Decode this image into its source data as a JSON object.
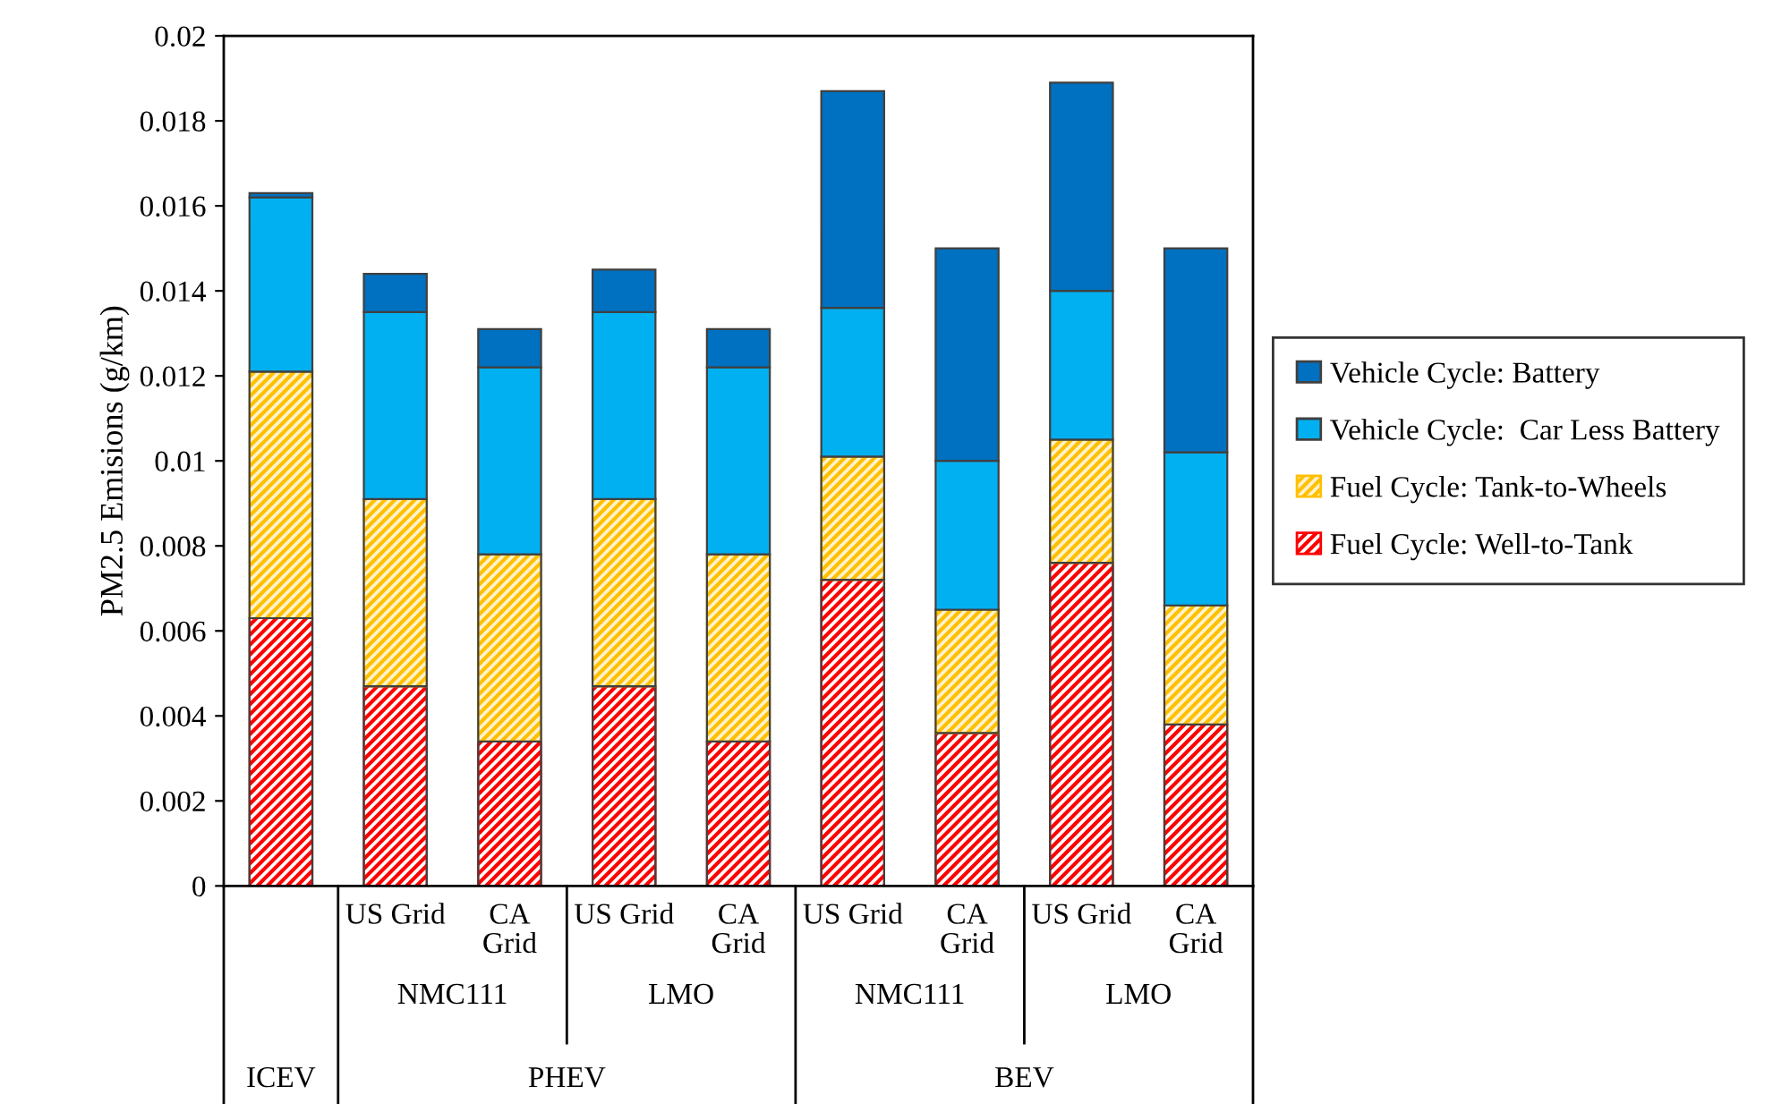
{
  "chart_data": {
    "type": "bar",
    "stacked": true,
    "ylabel": "PM2.5 Emisions (g/km)",
    "categories": [
      null,
      "US Grid",
      "CA\nGrid",
      "US Grid",
      "CA\nGrid",
      "US Grid",
      "CA\nGrid",
      "US Grid",
      "CA\nGrid"
    ],
    "series": [
      {
        "name": "Fuel Cycle: Well-to-Tank",
        "color": "#ff0000",
        "values": [
          0.0063,
          0.0047,
          0.0034,
          0.0047,
          0.0034,
          0.0072,
          0.0036,
          0.0076,
          0.0038
        ]
      },
      {
        "name": "Fuel Cycle: Tank-to-Wheels",
        "color": "#ffc000",
        "values": [
          0.0058,
          0.0044,
          0.0044,
          0.0044,
          0.0044,
          0.0029,
          0.0029,
          0.0029,
          0.0028
        ]
      },
      {
        "name": "Vehicle Cycle:  Car Less Battery",
        "color": "#00b0f0",
        "values": [
          0.0041,
          0.0044,
          0.0044,
          0.0044,
          0.0044,
          0.0035,
          0.0035,
          0.0035,
          0.0036
        ]
      },
      {
        "name": "Vehicle Cycle: Battery",
        "color": "#0070c0",
        "values": [
          0.0001,
          0.0009,
          0.0009,
          0.001,
          0.0009,
          0.0051,
          0.005,
          0.0049,
          0.0048
        ]
      }
    ],
    "annotations": [
      "NMC111",
      "LMO",
      "NMC111",
      "LMO",
      "ICEV",
      "PHEV",
      "BEV"
    ],
    "ylim": [
      0,
      0.02
    ],
    "yticks": [
      0,
      0.002,
      0.004,
      0.006,
      0.008,
      0.01,
      0.012,
      0.014,
      0.016,
      0.018,
      0.02
    ],
    "grid": false,
    "legend": "right"
  }
}
